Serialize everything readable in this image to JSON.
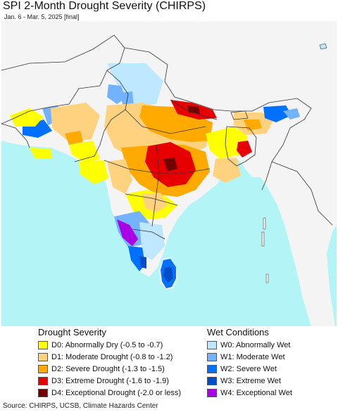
{
  "header": {
    "title": "SPI 2-Month Drought Severity (CHIRPS)",
    "subtitle": "Jan. 6 - Mar. 5, 2025 [final]"
  },
  "map": {
    "colors": {
      "ocean": "#b3f5f7",
      "land": "#f4f4f4",
      "border": "#333333",
      "d0": "#ffff00",
      "d1": "#ffd27f",
      "d2": "#ffaa00",
      "d3": "#e60000",
      "d4": "#730000",
      "w0": "#bee8ff",
      "w1": "#73b2ff",
      "w2": "#0070ff",
      "w3": "#004dc8",
      "w4": "#a900e6"
    }
  },
  "legend": {
    "drought": {
      "title": "Drought Severity",
      "items": [
        {
          "code": "D0",
          "label": "D0: Abnormally Dry (-0.5 to -0.7)",
          "color": "#ffff00"
        },
        {
          "code": "D1",
          "label": "D1: Moderate Drought (-0.8 to -1.2)",
          "color": "#ffd27f"
        },
        {
          "code": "D2",
          "label": "D2: Severe Drought (-1.3 to -1.5)",
          "color": "#ffaa00"
        },
        {
          "code": "D3",
          "label": "D3: Extreme Drought (-1.6 to -1.9)",
          "color": "#e60000"
        },
        {
          "code": "D4",
          "label": "D4: Exceptional Drought (-2.0 or less)",
          "color": "#730000"
        }
      ]
    },
    "wet": {
      "title": "Wet Conditions",
      "items": [
        {
          "code": "W0",
          "label": "W0: Abnormally Wet",
          "color": "#bee8ff"
        },
        {
          "code": "W1",
          "label": "W1: Moderate Wet",
          "color": "#73b2ff"
        },
        {
          "code": "W2",
          "label": "W2: Severe Wet",
          "color": "#0070ff"
        },
        {
          "code": "W3",
          "label": "W3: Extreme Wet",
          "color": "#004dc8"
        },
        {
          "code": "W4",
          "label": "W4: Exceptional Wet",
          "color": "#a900e6"
        }
      ]
    }
  },
  "footer": {
    "source": "Source: CHIRPS, UCSB, Climate Hazards Center"
  }
}
